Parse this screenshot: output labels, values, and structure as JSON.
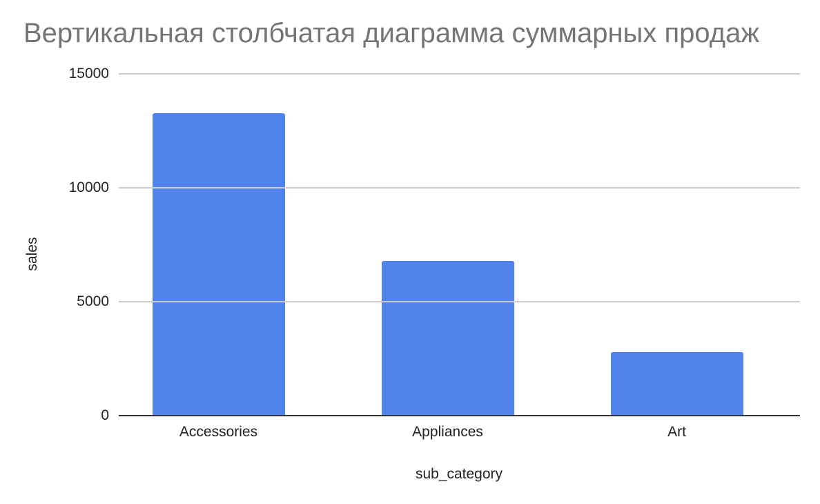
{
  "chart_data": {
    "type": "bar",
    "title": "Вертикальная столбчатая диаграмма суммарных продаж",
    "xlabel": "sub_category",
    "ylabel": "sales",
    "categories": [
      "Accessories",
      "Appliances",
      "Art"
    ],
    "values": [
      13270,
      6790,
      2790
    ],
    "ylim": [
      0,
      15000
    ],
    "yticks": [
      "0",
      "5000",
      "10000",
      "15000"
    ],
    "grid": true,
    "legend": "none",
    "bar_color": "#5083eb"
  }
}
